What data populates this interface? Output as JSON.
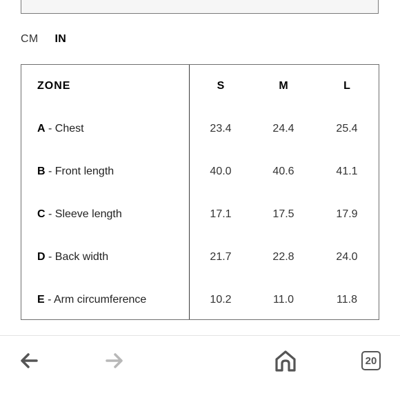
{
  "units": {
    "options": [
      "CM",
      "IN"
    ],
    "active": "IN"
  },
  "table": {
    "header": {
      "zone": "ZONE",
      "sizes": [
        "S",
        "M",
        "L"
      ]
    },
    "rows": [
      {
        "letter": "A",
        "label": " - Chest",
        "values": [
          "23.4",
          "24.4",
          "25.4"
        ]
      },
      {
        "letter": "B",
        "label": " - Front length",
        "values": [
          "40.0",
          "40.6",
          "41.1"
        ]
      },
      {
        "letter": "C",
        "label": " - Sleeve length",
        "values": [
          "17.1",
          "17.5",
          "17.9"
        ]
      },
      {
        "letter": "D",
        "label": " - Back width",
        "values": [
          "21.7",
          "22.8",
          "24.0"
        ]
      },
      {
        "letter": "E",
        "label": " - Arm circumference",
        "values": [
          "10.2",
          "11.0",
          "11.8"
        ]
      }
    ]
  },
  "bottom_nav": {
    "back_icon": "arrow-left-icon",
    "forward_icon": "arrow-right-icon",
    "home_icon": "home-icon",
    "tabs_icon": "tabs-icon",
    "tabs_count": "20",
    "colors": {
      "active": "#555555",
      "disabled": "#b8b8b8"
    }
  }
}
